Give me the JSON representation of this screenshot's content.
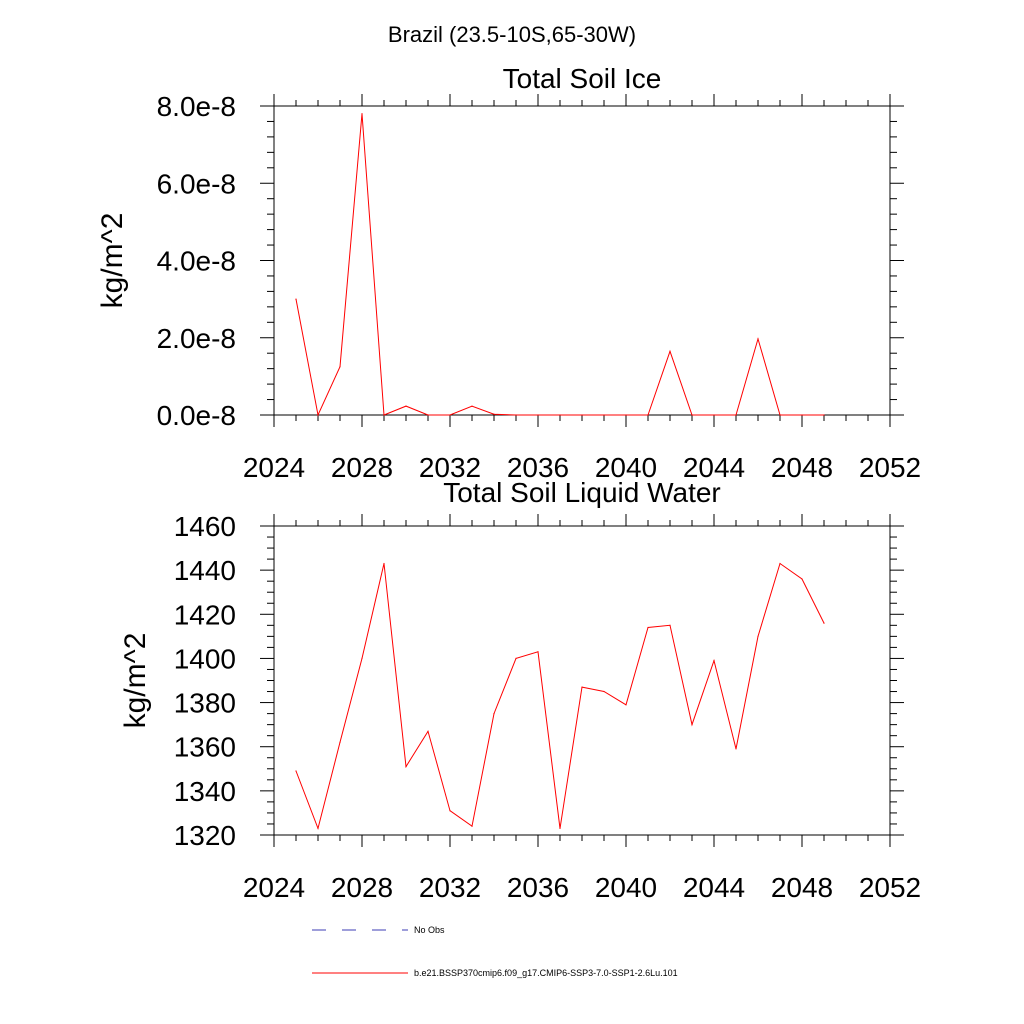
{
  "figure": {
    "suptitle": "Brazil (23.5-10S,65-30W)"
  },
  "colors": {
    "series_line": "#ff0000",
    "obs_line": "#3c3cb4",
    "axis": "#000000"
  },
  "chart_data": [
    {
      "type": "line",
      "title": "Total Soil Ice",
      "ylabel": "kg/m^2",
      "xlabel": "",
      "xlim": [
        2024,
        2052
      ],
      "ylim": [
        0,
        8e-08
      ],
      "xticks": [
        2024,
        2028,
        2032,
        2036,
        2040,
        2044,
        2048,
        2052
      ],
      "yticks": [
        0,
        2e-08,
        4e-08,
        6e-08,
        8e-08
      ],
      "ytick_labels": [
        "0.0e-8",
        "2.0e-8",
        "4.0e-8",
        "6.0e-8",
        "8.0e-8"
      ],
      "grid": false,
      "x": [
        2025,
        2026,
        2027,
        2028,
        2029,
        2030,
        2031,
        2032,
        2033,
        2034,
        2035,
        2036,
        2037,
        2038,
        2039,
        2040,
        2041,
        2042,
        2043,
        2044,
        2045,
        2046,
        2047,
        2048,
        2049
      ],
      "series": [
        {
          "name": "b.e21.BSSP370cmip6.f09_g17.CMIP6-SSP3-7.0-SSP1-2.6Lu.101",
          "values": [
            3e-08,
            0,
            1.25e-08,
            7.8e-08,
            0,
            2.3e-09,
            0,
            0,
            2.3e-09,
            2e-10,
            0,
            0,
            0,
            0,
            0,
            0,
            0,
            1.65e-08,
            0,
            0,
            0,
            1.97e-08,
            0,
            0,
            0
          ]
        }
      ]
    },
    {
      "type": "line",
      "title": "Total Soil Liquid Water",
      "ylabel": "kg/m^2",
      "xlabel": "",
      "xlim": [
        2024,
        2052
      ],
      "ylim": [
        1320,
        1460
      ],
      "xticks": [
        2024,
        2028,
        2032,
        2036,
        2040,
        2044,
        2048,
        2052
      ],
      "yticks": [
        1320,
        1340,
        1360,
        1380,
        1400,
        1420,
        1440,
        1460
      ],
      "ytick_labels": [
        "1320",
        "1340",
        "1360",
        "1380",
        "1400",
        "1420",
        "1440",
        "1460"
      ],
      "grid": false,
      "x": [
        2025,
        2026,
        2027,
        2028,
        2029,
        2030,
        2031,
        2032,
        2033,
        2034,
        2035,
        2036,
        2037,
        2038,
        2039,
        2040,
        2041,
        2042,
        2043,
        2044,
        2045,
        2046,
        2047,
        2048,
        2049
      ],
      "series": [
        {
          "name": "b.e21.BSSP370cmip6.f09_g17.CMIP6-SSP3-7.0-SSP1-2.6Lu.101",
          "values": [
            1349,
            1323,
            1362,
            1400,
            1443,
            1351,
            1367,
            1331,
            1324,
            1375,
            1400,
            1403,
            1323,
            1387,
            1385,
            1379,
            1414,
            1415,
            1370,
            1399,
            1359,
            1410,
            1443,
            1436,
            1416
          ]
        }
      ]
    }
  ],
  "legend": {
    "placement": "bottom",
    "entries": [
      {
        "label": "No Obs",
        "style": "dashed"
      },
      {
        "label": "b.e21.BSSP370cmip6.f09_g17.CMIP6-SSP3-7.0-SSP1-2.6Lu.101",
        "style": "solid"
      }
    ]
  }
}
